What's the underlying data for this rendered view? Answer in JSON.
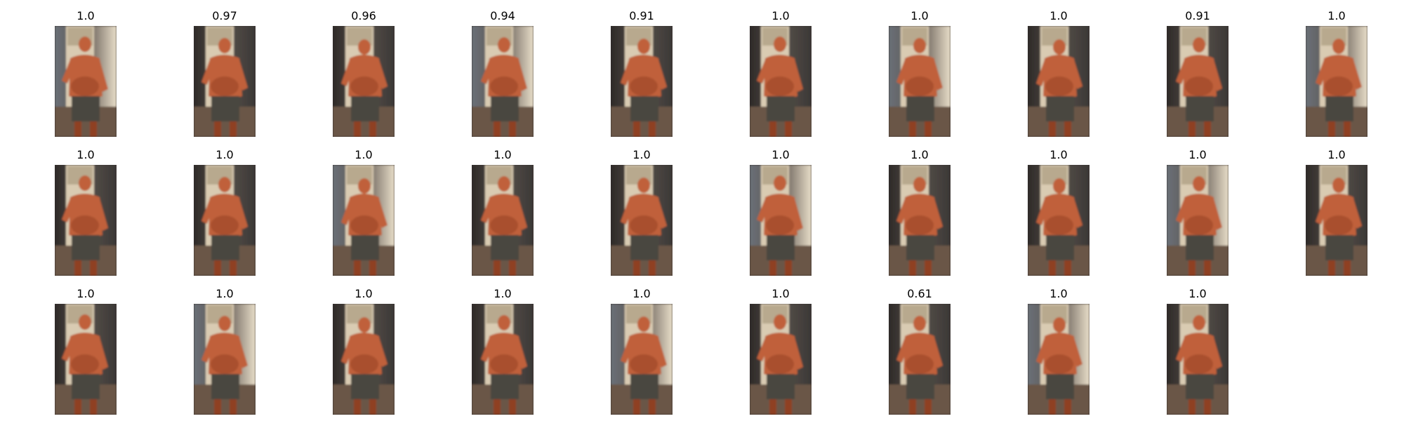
{
  "grid": {
    "rows": 3,
    "columns": 10,
    "frames": [
      {
        "score": "1.0"
      },
      {
        "score": "0.97"
      },
      {
        "score": "0.96"
      },
      {
        "score": "0.94"
      },
      {
        "score": "0.91"
      },
      {
        "score": "1.0"
      },
      {
        "score": "1.0"
      },
      {
        "score": "1.0"
      },
      {
        "score": "0.91"
      },
      {
        "score": "1.0"
      },
      {
        "score": "1.0"
      },
      {
        "score": "1.0"
      },
      {
        "score": "1.0"
      },
      {
        "score": "1.0"
      },
      {
        "score": "1.0"
      },
      {
        "score": "1.0"
      },
      {
        "score": "1.0"
      },
      {
        "score": "1.0"
      },
      {
        "score": "1.0"
      },
      {
        "score": "1.0"
      },
      {
        "score": "1.0"
      },
      {
        "score": "1.0"
      },
      {
        "score": "1.0"
      },
      {
        "score": "1.0"
      },
      {
        "score": "1.0"
      },
      {
        "score": "1.0"
      },
      {
        "score": "0.61"
      },
      {
        "score": "1.0"
      },
      {
        "score": "1.0"
      }
    ]
  },
  "colors": {
    "background": "#ffffff",
    "title_text": "#000000",
    "skin": "#c0603a",
    "skin_shadow": "#8f3f22",
    "shorts": "#4a4640",
    "door_panel": "#d9cbb2",
    "room_dark": "#2e2a28",
    "floor": "#6b5646"
  }
}
